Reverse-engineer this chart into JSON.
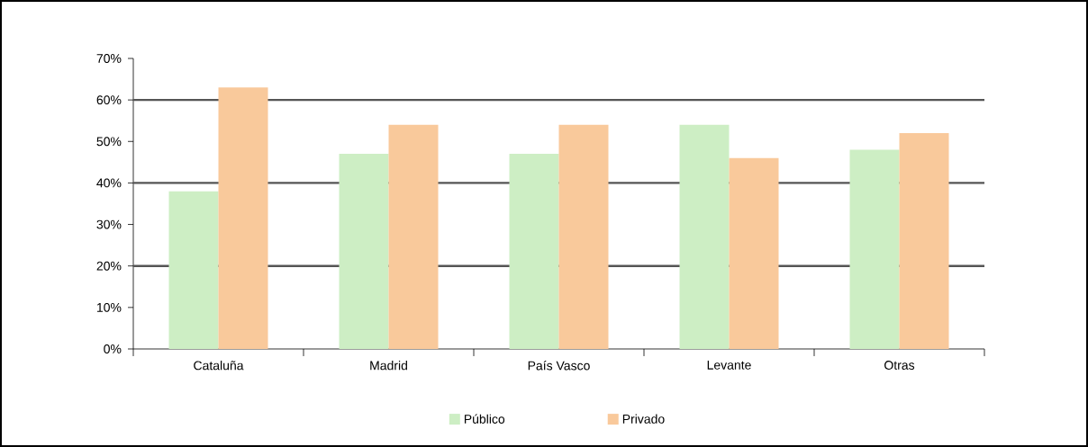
{
  "chart_data": {
    "type": "bar",
    "categories": [
      "Cataluña",
      "Madrid",
      "País Vasco",
      "Levante",
      "Otras"
    ],
    "series": [
      {
        "name": "Público",
        "color": "#cdeec4",
        "values": [
          38,
          47,
          47,
          54,
          48
        ]
      },
      {
        "name": "Privado",
        "color": "#f9c99b",
        "values": [
          63,
          54,
          54,
          46,
          52
        ]
      }
    ],
    "ylim": [
      0,
      70
    ],
    "yticks": [
      {
        "value": 0,
        "label": "0%"
      },
      {
        "value": 10,
        "label": "10%"
      },
      {
        "value": 20,
        "label": "20%"
      },
      {
        "value": 30,
        "label": "30%"
      },
      {
        "value": 40,
        "label": "40%"
      },
      {
        "value": 50,
        "label": "50%"
      },
      {
        "value": 60,
        "label": "60%"
      },
      {
        "value": 70,
        "label": "70%"
      }
    ],
    "ref_lines": [
      {
        "axis": "y",
        "value": 20,
        "color": "#555555"
      },
      {
        "axis": "y",
        "value": 40,
        "color": "#555555"
      },
      {
        "axis": "y",
        "value": 60,
        "color": "#555555"
      }
    ],
    "legend": "bottom"
  }
}
